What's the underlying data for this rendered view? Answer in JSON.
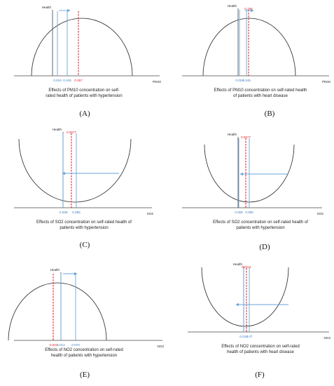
{
  "panels": [
    {
      "id": "A",
      "shape": "cap",
      "y_label": "Health",
      "x_label": "PM10",
      "blue_values": [
        "0.024",
        "0.245"
      ],
      "red_value": "0.267",
      "red_label_at": "bottom",
      "arrow": "right",
      "caption_lines": [
        "Effects of PM10 concentration on self-",
        "rated health of patients with hypertension"
      ],
      "letter": "(A)"
    },
    {
      "id": "B",
      "shape": "cap",
      "y_label": "Health",
      "x_label": "PM10",
      "blue_values": [
        "0.024",
        "0.245"
      ],
      "red_value": "0.195",
      "red_label_at": "top",
      "arrow": "right",
      "caption_lines": [
        "Effects of PM10 concentration on self-rated health",
        "of patients with heart disease"
      ],
      "letter": "(B)"
    },
    {
      "id": "C",
      "shape": "cup",
      "y_label": "Health",
      "x_label": "SO2",
      "blue_values": [
        "-2.008",
        "0.095"
      ],
      "red_value": "0.0577",
      "red_label_at": "top",
      "arrow": "left",
      "caption_lines": [
        "Effects of SO2 concentration on self-rated health of",
        "patients with hypertension"
      ],
      "letter": "(C)"
    },
    {
      "id": "D",
      "shape": "cup",
      "y_label": "Health",
      "x_label": "SO2",
      "blue_values": [
        "0.008",
        "0.095"
      ],
      "red_value": "0.0577",
      "red_label_at": "top",
      "arrow": "left",
      "caption_lines": [
        "Effects of SO2 concentration on self-rated health of",
        "patients with hypertension"
      ],
      "letter": "(D)"
    },
    {
      "id": "E",
      "shape": "cap",
      "y_label": "Health",
      "x_label": "NO2",
      "blue_values": [
        "0.012",
        "0.070"
      ],
      "red_value": "-0.021",
      "red_label_at": "bottom",
      "arrow": "right",
      "caption_lines": [
        "Effects of NO2 concentration on self-rated",
        "health of patients with hypertension"
      ],
      "letter": "(E)"
    },
    {
      "id": "F",
      "shape": "cup",
      "y_label": "Health",
      "x_label": "NO2",
      "blue_values": [
        "0.012",
        "0.07"
      ],
      "red_value": "0.0211",
      "red_label_at": "top",
      "arrow": "left",
      "caption_lines": [
        "Effects of NO2 concentration on self-rated",
        "health of patients with heart disease"
      ],
      "letter": "(F)"
    }
  ],
  "colors": {
    "curve": "#222222",
    "axis": "#444444",
    "blue": "#6aa3d8",
    "blue_text": "#3a7fc0",
    "red": "#e0242b"
  }
}
